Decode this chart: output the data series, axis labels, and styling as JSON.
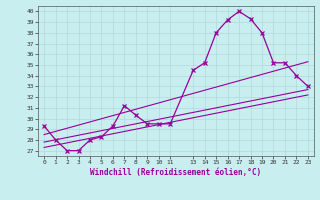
{
  "xlabel": "Windchill (Refroidissement éolien,°C)",
  "bg_color": "#c8eef0",
  "grid_color": "#b0d8da",
  "line_color": "#990099",
  "xlim": [
    -0.5,
    23.5
  ],
  "ylim": [
    26.5,
    40.5
  ],
  "yticks": [
    27,
    28,
    29,
    30,
    31,
    32,
    33,
    34,
    35,
    36,
    37,
    38,
    39,
    40
  ],
  "xtick_positions": [
    0,
    1,
    2,
    3,
    4,
    5,
    6,
    7,
    8,
    9,
    10,
    11,
    13,
    14,
    15,
    16,
    17,
    18,
    19,
    20,
    21,
    22,
    23
  ],
  "xtick_labels": [
    "0",
    "1",
    "2",
    "3",
    "4",
    "5",
    "6",
    "7",
    "8",
    "9",
    "10",
    "11",
    "13",
    "14",
    "15",
    "16",
    "17",
    "18",
    "19",
    "20",
    "21",
    "22",
    "23"
  ],
  "series1_x": [
    0,
    1,
    2,
    3,
    4,
    5,
    6,
    7,
    8,
    9,
    10,
    11,
    13,
    14,
    15,
    16,
    17,
    18,
    19,
    20,
    21,
    22,
    23
  ],
  "series1_y": [
    29.3,
    28.0,
    27.0,
    27.0,
    28.0,
    28.3,
    29.3,
    31.2,
    30.3,
    29.5,
    29.5,
    29.5,
    34.5,
    35.2,
    38.0,
    39.2,
    40.0,
    39.3,
    38.0,
    35.2,
    35.2,
    34.0,
    33.0
  ],
  "series2_x": [
    0,
    23
  ],
  "series2_y": [
    27.3,
    32.2
  ],
  "series3_x": [
    0,
    23
  ],
  "series3_y": [
    27.8,
    32.7
  ],
  "series4_x": [
    0,
    23
  ],
  "series4_y": [
    28.5,
    35.3
  ]
}
